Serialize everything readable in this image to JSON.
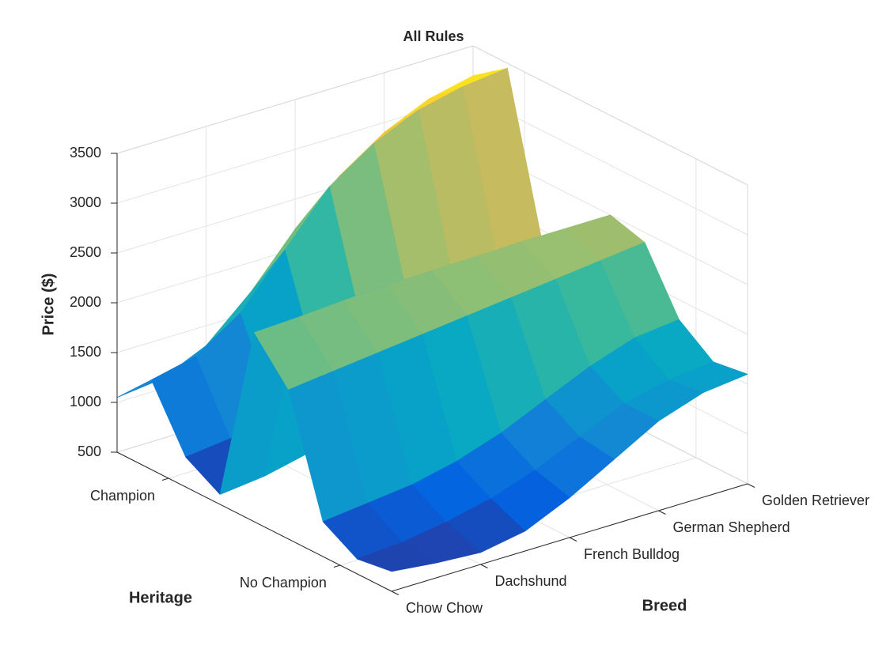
{
  "chart_data": {
    "type": "surface",
    "title": "All Rules",
    "xlabel": "Breed",
    "ylabel": "Heritage",
    "zlabel": "Price ($)",
    "x": [
      1,
      1.5,
      2,
      2.5,
      3,
      3.5,
      4,
      4.5,
      5
    ],
    "y": [
      0.7,
      0.9,
      1.1,
      1.3,
      1.5,
      1.7,
      1.9,
      2.1,
      2.3
    ],
    "z": [
      [
        1050,
        1100,
        1300,
        1700,
        2200,
        2600,
        2900,
        3100,
        3200
      ],
      [
        1400,
        1500,
        1800,
        2300,
        2800,
        3100,
        3300,
        3400,
        3450
      ],
      [
        800,
        850,
        950,
        1200,
        1500,
        1700,
        1800,
        1850,
        1900
      ],
      [
        600,
        650,
        750,
        900,
        1100,
        1300,
        1450,
        1550,
        1600
      ],
      [
        2400,
        2420,
        2450,
        2470,
        2480,
        2490,
        2500,
        2500,
        2500
      ],
      [
        2000,
        2050,
        2100,
        2150,
        2200,
        2250,
        2300,
        2350,
        2400
      ],
      [
        850,
        900,
        950,
        1050,
        1200,
        1400,
        1600,
        1750,
        1800
      ],
      [
        650,
        680,
        750,
        850,
        1000,
        1200,
        1400,
        1500,
        1550
      ],
      [
        700,
        650,
        620,
        700,
        900,
        1150,
        1400,
        1550,
        1600
      ]
    ],
    "xlim": [
      1,
      5
    ],
    "ylim": [
      0.7,
      2.3
    ],
    "zlim": [
      500,
      3500
    ],
    "xticks": [
      {
        "value": 1,
        "label": "Chow Chow"
      },
      {
        "value": 2,
        "label": "Dachshund"
      },
      {
        "value": 3,
        "label": "French Bulldog"
      },
      {
        "value": 4,
        "label": "German Shepherd"
      },
      {
        "value": 5,
        "label": "Golden Retriever"
      }
    ],
    "yticks": [
      {
        "value": 1,
        "label": "Champion"
      },
      {
        "value": 2,
        "label": "No Champion"
      }
    ],
    "zticks": [
      500,
      1000,
      1500,
      2000,
      2500,
      3000,
      3500
    ],
    "colormap": "parula",
    "grid": true
  }
}
